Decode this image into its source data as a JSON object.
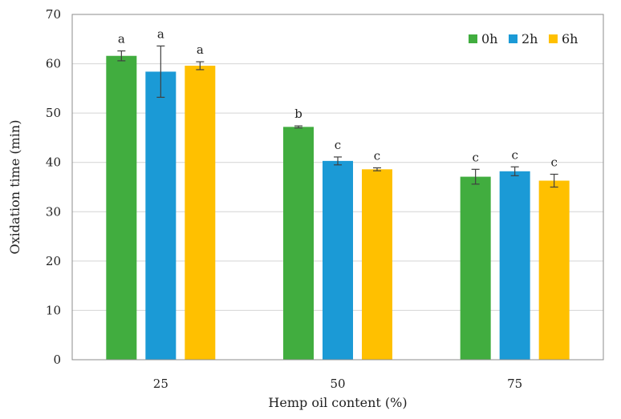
{
  "chart_data": {
    "type": "bar",
    "title": "",
    "xlabel": "Hemp oil content (%)",
    "ylabel": "Oxidation time (min)",
    "categories": [
      "25",
      "50",
      "75"
    ],
    "ylim": [
      0,
      70
    ],
    "yticks": [
      0,
      10,
      20,
      30,
      40,
      50,
      60,
      70
    ],
    "grid": true,
    "legend_position": "top-right",
    "series": [
      {
        "name": "0h",
        "color": "#41AD3F",
        "values": [
          61.6,
          47.2,
          37.1
        ],
        "errors": [
          1.0,
          0.2,
          1.5
        ],
        "labels": [
          "a",
          "b",
          "c"
        ]
      },
      {
        "name": "2h",
        "color": "#1B9AD6",
        "values": [
          58.4,
          40.3,
          38.2
        ],
        "errors": [
          5.2,
          0.8,
          0.9
        ],
        "labels": [
          "a",
          "c",
          "c"
        ]
      },
      {
        "name": "6h",
        "color": "#FFC000",
        "values": [
          59.6,
          38.6,
          36.3
        ],
        "errors": [
          0.8,
          0.3,
          1.3
        ],
        "labels": [
          "a",
          "c",
          "c"
        ]
      }
    ]
  }
}
